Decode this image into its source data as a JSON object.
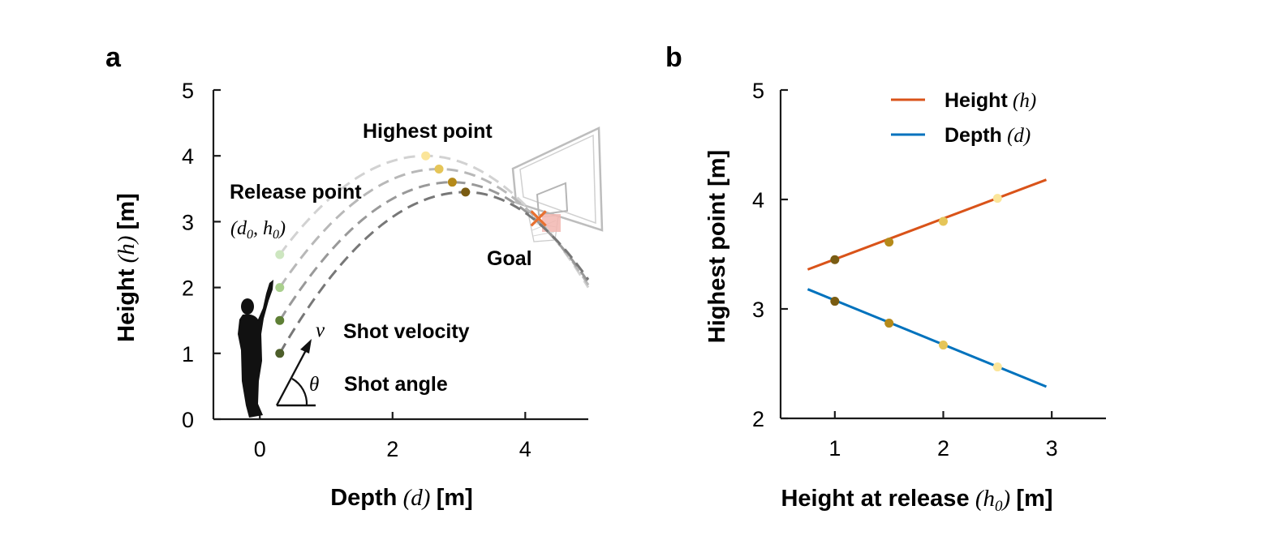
{
  "chart_data": [
    {
      "panel": "a",
      "type": "line",
      "xlabel": "Depth",
      "xlabel_var": "d",
      "xlabel_unit": "[m]",
      "ylabel": "Height",
      "ylabel_var": "h",
      "ylabel_unit": "[m]",
      "xlim": [
        -0.7,
        4.95
      ],
      "ylim": [
        0,
        5
      ],
      "xticks": [
        0,
        2,
        4
      ],
      "yticks": [
        0,
        1,
        2,
        3,
        4,
        5
      ],
      "annotations": {
        "highest_point": "Highest point",
        "release_point": "Release point",
        "release_coord": "(d0, h0)",
        "goal": "Goal",
        "shot_velocity": "Shot velocity",
        "velocity_symbol": "v",
        "shot_angle": "Shot angle",
        "angle_symbol": "θ"
      },
      "goal_point": {
        "x": 4.2,
        "y": 3.05,
        "color": "#e87030"
      },
      "series": [
        {
          "release": [
            0.3,
            1.0
          ],
          "peak": [
            3.1,
            3.45
          ],
          "end": [
            4.95,
            2.12
          ],
          "dot_color": "#4d5e2a",
          "peak_color": "#7a5c12",
          "line_color": "#777777"
        },
        {
          "release": [
            0.3,
            1.5
          ],
          "peak": [
            2.9,
            3.6
          ],
          "end": [
            4.95,
            2.08
          ],
          "dot_color": "#5e7f35",
          "peak_color": "#b58a1a",
          "line_color": "#999999"
        },
        {
          "release": [
            0.3,
            2.0
          ],
          "peak": [
            2.7,
            3.8
          ],
          "end": [
            4.95,
            2.04
          ],
          "dot_color": "#a9cf8d",
          "peak_color": "#e5c558",
          "line_color": "#b8b8b8"
        },
        {
          "release": [
            0.3,
            2.5
          ],
          "peak": [
            2.5,
            4.0
          ],
          "end": [
            4.95,
            2.0
          ],
          "dot_color": "#cde6c0",
          "peak_color": "#fbe59a",
          "line_color": "#d2d2d2"
        }
      ]
    },
    {
      "panel": "b",
      "type": "line",
      "xlabel": "Height at release",
      "xlabel_var": "h0",
      "xlabel_unit": "[m]",
      "ylabel": "Highest point [m]",
      "xlim": [
        0.5,
        3.5
      ],
      "ylim": [
        2,
        5
      ],
      "xticks": [
        1,
        2,
        3
      ],
      "yticks": [
        2,
        3,
        4,
        5
      ],
      "legend_position": "top",
      "series": [
        {
          "name": "Height",
          "name_var": "h",
          "color": "#d95319",
          "x": [
            0.75,
            2.95
          ],
          "y": [
            3.36,
            4.18
          ]
        },
        {
          "name": "Depth",
          "name_var": "d",
          "color": "#0072bd",
          "x": [
            0.75,
            2.95
          ],
          "y": [
            3.18,
            2.29
          ]
        }
      ],
      "points": [
        {
          "x": 1.0,
          "y": 3.45,
          "color": "#7a5c12"
        },
        {
          "x": 1.5,
          "y": 3.61,
          "color": "#b58a1a"
        },
        {
          "x": 2.0,
          "y": 3.8,
          "color": "#e5c558"
        },
        {
          "x": 2.5,
          "y": 4.01,
          "color": "#fbe59a"
        },
        {
          "x": 1.0,
          "y": 3.07,
          "color": "#7a5c12"
        },
        {
          "x": 1.5,
          "y": 2.87,
          "color": "#b58a1a"
        },
        {
          "x": 2.0,
          "y": 2.67,
          "color": "#e5c558"
        },
        {
          "x": 2.5,
          "y": 2.47,
          "color": "#fbe59a"
        }
      ]
    }
  ]
}
